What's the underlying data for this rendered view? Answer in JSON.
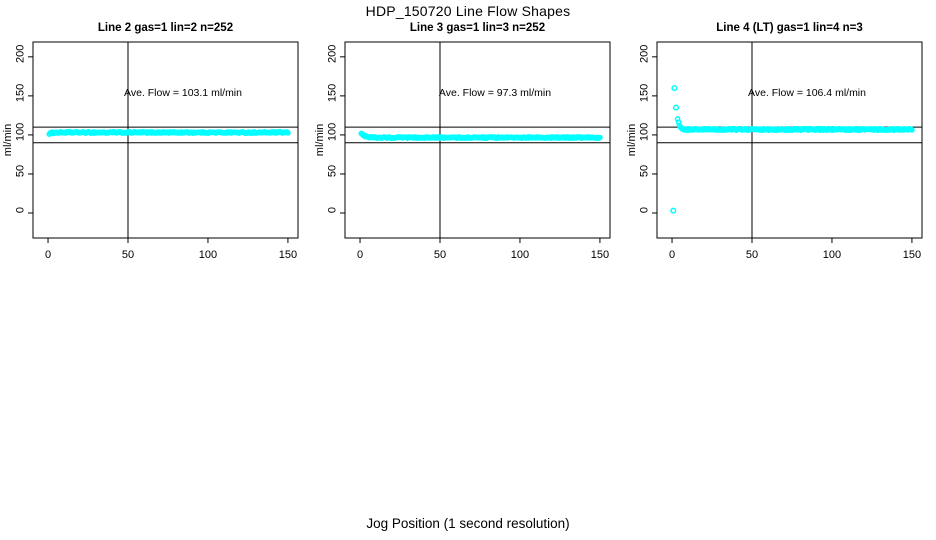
{
  "page": {
    "title": "HDP_150720  Line Flow Shapes",
    "xlabel": "Jog Position (1 second resolution)"
  },
  "colors": {
    "points": "#00FFFF",
    "axis": "#000000",
    "background": "#FFFFFF",
    "text": "#000000"
  },
  "chart_data": [
    {
      "type": "scatter",
      "title": "Line 2 gas=1 lin=2 n=252",
      "params": {
        "line": "Line 2",
        "gas": 1,
        "lin": 2,
        "n": 252
      },
      "annotation": "Ave. Flow =  103.1  ml/min",
      "ave_flow_ml_min": 103.1,
      "ylabel": "ml/min",
      "x_ticks": [
        0,
        50,
        100,
        150
      ],
      "y_ticks": [
        0,
        50,
        100,
        150,
        200
      ],
      "xlim": [
        -9.4,
        156.3
      ],
      "ylim": [
        -32,
        219
      ],
      "ref_lines_h": [
        110,
        90
      ],
      "ref_line_v": 50,
      "series": {
        "n": 250,
        "x_start": 0.8,
        "x_end": 150,
        "start_y": 101.8,
        "settle_y": 103.1,
        "decay_tau": 1.5,
        "jitter": 0.8
      },
      "outliers": []
    },
    {
      "type": "scatter",
      "title": "Line 3 gas=1 lin=3 n=252",
      "params": {
        "line": "Line 3",
        "gas": 1,
        "lin": 3,
        "n": 252
      },
      "annotation": "Ave. Flow =  97.3  ml/min",
      "ave_flow_ml_min": 97.3,
      "ylabel": "ml/min",
      "x_ticks": [
        0,
        50,
        100,
        150
      ],
      "y_ticks": [
        0,
        50,
        100,
        150,
        200
      ],
      "xlim": [
        -9.4,
        156.3
      ],
      "ylim": [
        -32,
        219
      ],
      "ref_lines_h": [
        110,
        90
      ],
      "ref_line_v": 50,
      "series": {
        "n": 250,
        "x_start": 0.8,
        "x_end": 150,
        "start_y": 102.5,
        "settle_y": 96.6,
        "decay_tau": 2.2,
        "jitter": 0.8
      },
      "outliers": []
    },
    {
      "type": "scatter",
      "title": "Line 4 (LT) gas=1 lin=4 n=3",
      "params": {
        "line": "Line 4 (LT)",
        "gas": 1,
        "lin": 4,
        "n": 3
      },
      "annotation": "Ave. Flow =  106.4  ml/min",
      "ave_flow_ml_min": 106.4,
      "ylabel": "ml/min",
      "x_ticks": [
        0,
        50,
        100,
        150
      ],
      "y_ticks": [
        0,
        50,
        100,
        150,
        200
      ],
      "xlim": [
        -9.4,
        156.3
      ],
      "ylim": [
        -32,
        219
      ],
      "ref_lines_h": [
        110,
        90
      ],
      "ref_line_v": 50,
      "series": {
        "n": 248,
        "x_start": 3.5,
        "x_end": 150,
        "start_y": 121,
        "settle_y": 107,
        "decay_tau": 1.2,
        "jitter": 1.0
      },
      "outliers": [
        [
          0.8,
          3
        ],
        [
          1.5,
          160
        ],
        [
          2.5,
          135
        ]
      ]
    }
  ]
}
